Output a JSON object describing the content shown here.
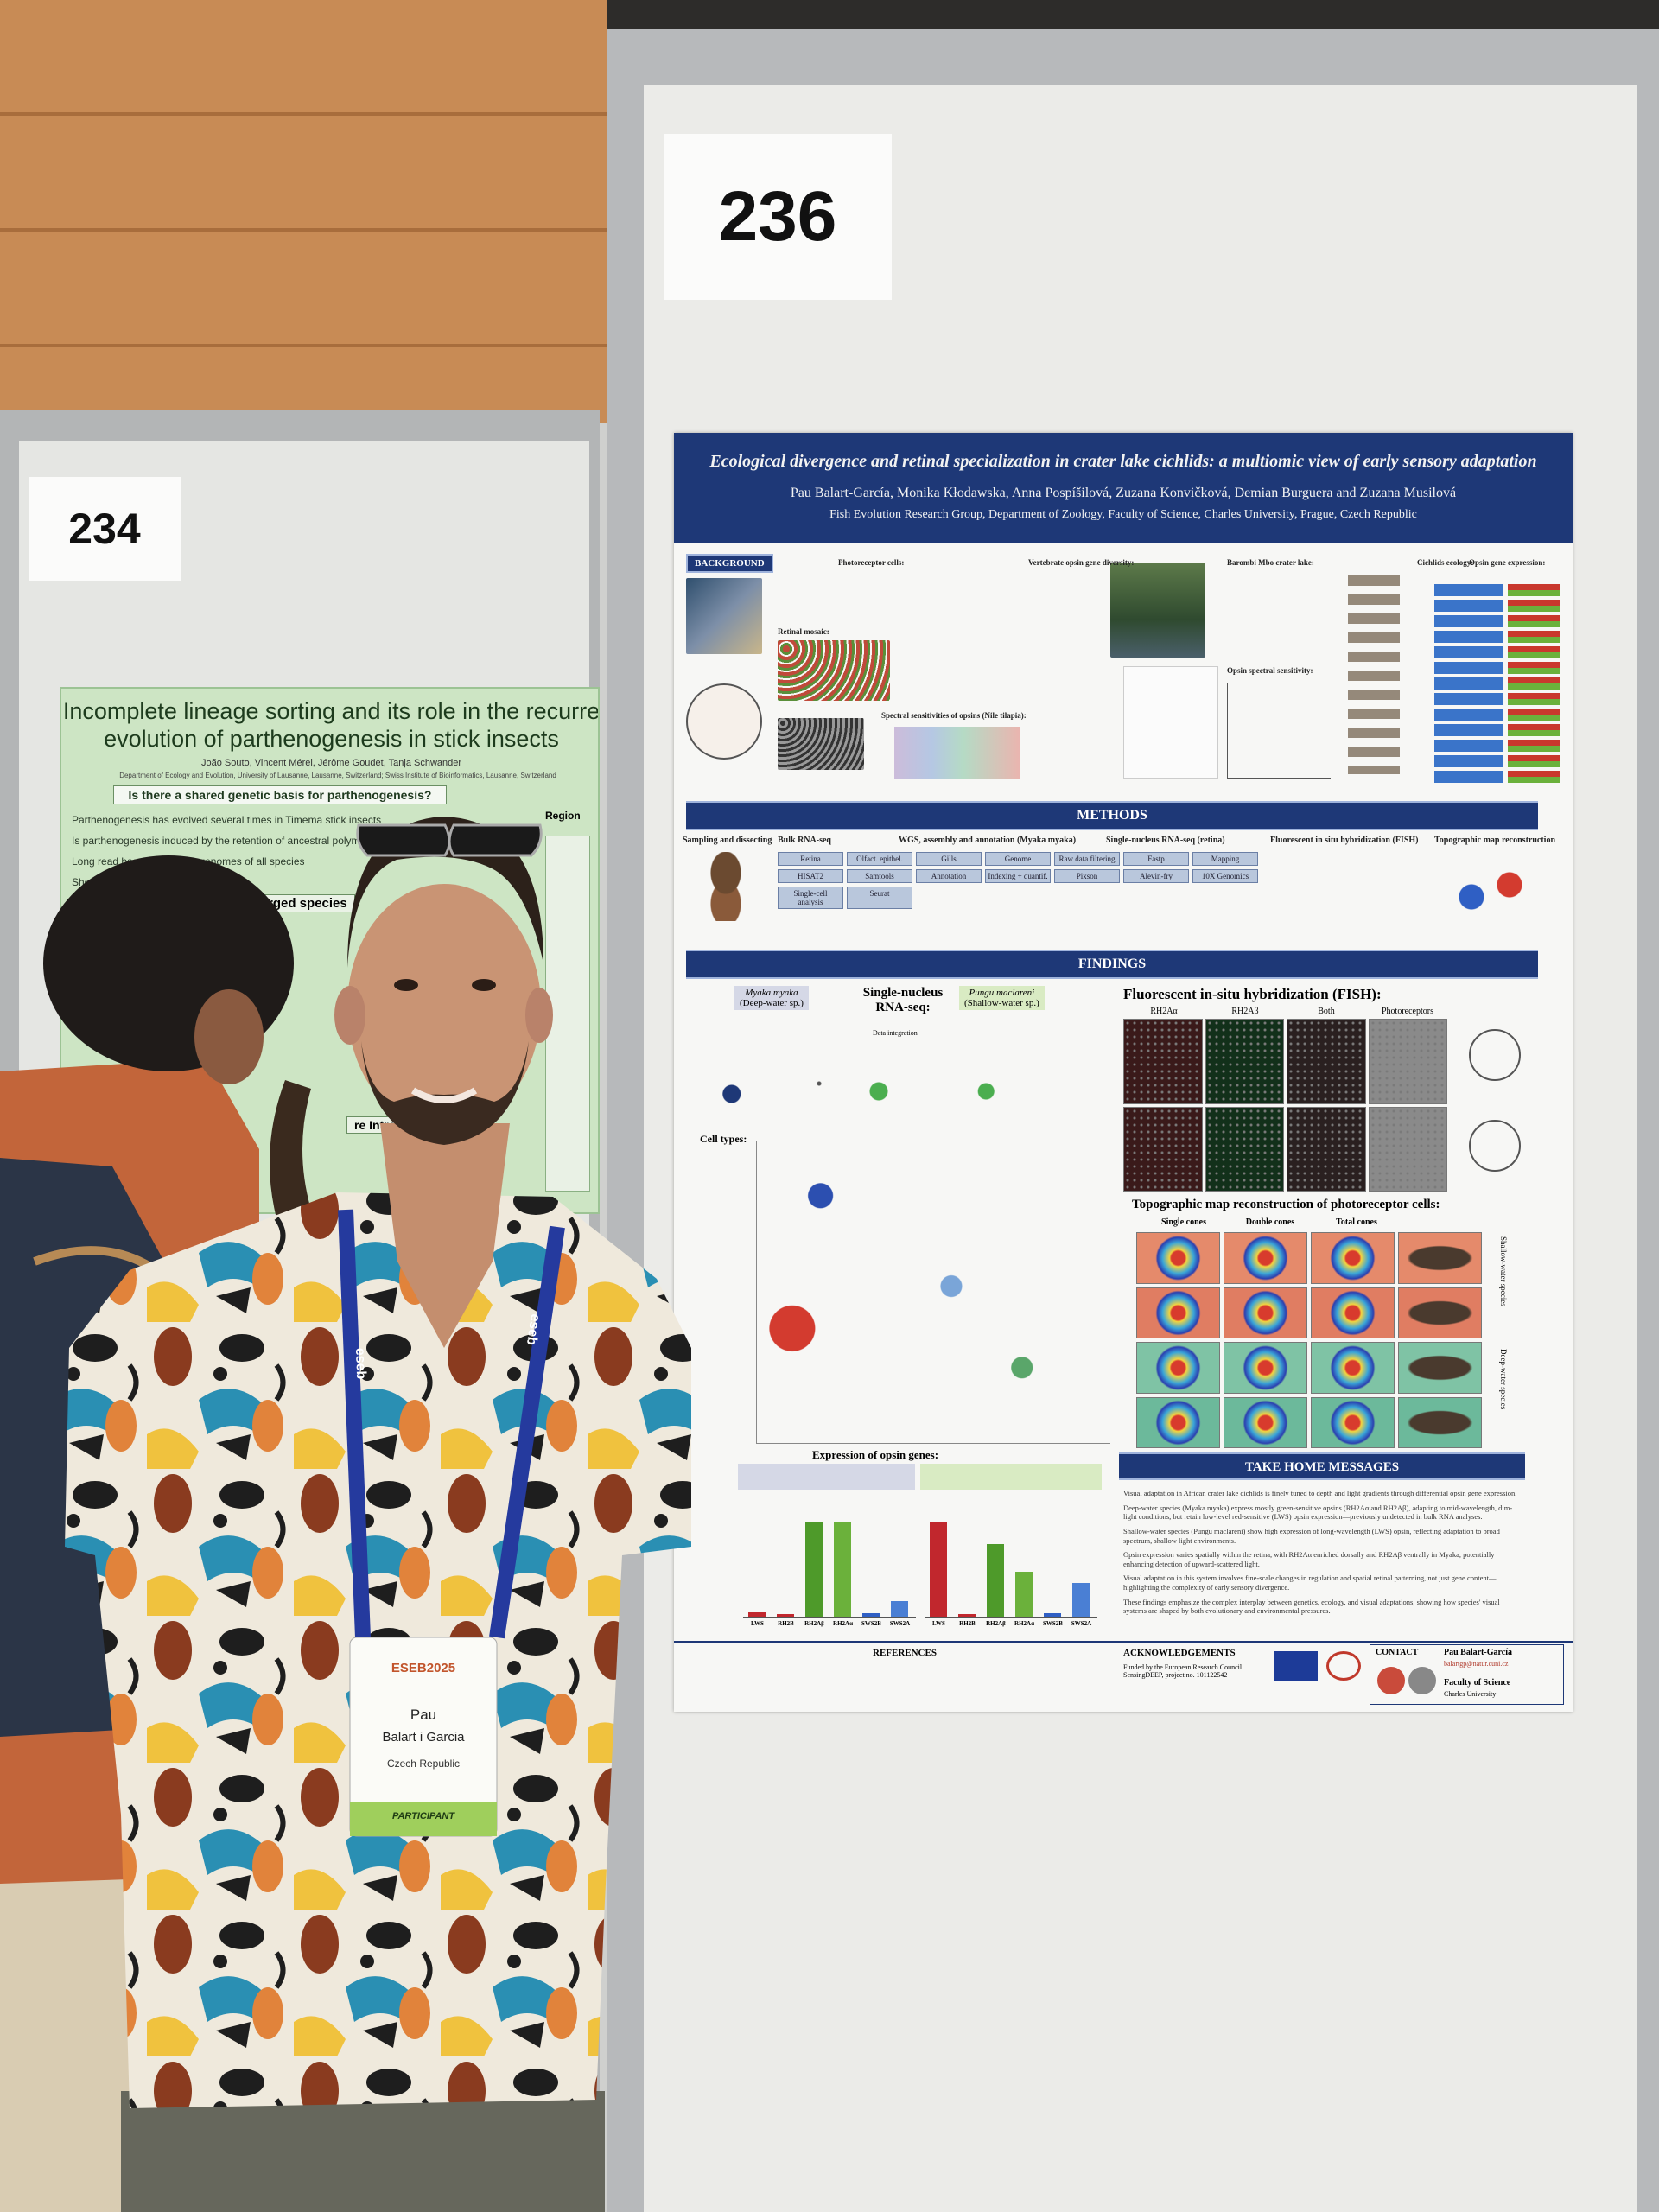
{
  "board_labels": {
    "left": "234",
    "right": "236"
  },
  "left_poster": {
    "title_lines": [
      "Incomplete lineage sorting and its role in the recurre",
      "evolution of parthenogenesis in stick insects"
    ],
    "authors": "João Souto, Vincent Mérel, Jérôme Goudet, Tanja Schwander",
    "affiliations": "Department of Ecology and Evolution, University of Lausanne, Lausanne, Switzerland; Swiss Institute of Bioinformatics, Lausanne, Switzerland",
    "question": "Is there a shared genetic basis for parthenogenesis?",
    "lines": [
      "Parthenogenesis has evolved several times in Timema stick insects",
      "Is parthenogenesis induced by the retention of ancestral polymorp",
      "Long read based reference genomes of all species",
      "Short read"
    ],
    "subheading": "diverged species",
    "side_label": "Region",
    "box_heading": "re Introgression"
  },
  "main_poster": {
    "title": "Ecological divergence and retinal specialization in crater lake cichlids: a multiomic view of early sensory adaptation",
    "authors": "Pau Balart-García, Monika Kłodawska, Anna Pospíšilová, Zuzana Konvičková, Demian Burguera and Zuzana Musilová",
    "affiliation": "Fish Evolution Research Group, Department of Zoology, Faculty of Science, Charles University, Prague, Czech Republic",
    "background": {
      "label": "BACKGROUND",
      "headings": [
        "Photoreceptor cells:",
        "Retinal mosaic:",
        "Spectral sensitivities of opsins (Nile tilapia):",
        "Vertebrate opsin gene diversity:",
        "Barombi Mbo crater lake:",
        "Opsin spectral sensitivity:",
        "Cichlids ecology:",
        "Opsin gene expression:"
      ]
    },
    "methods": {
      "label": "METHODS",
      "headings": [
        "Sampling and dissecting",
        "Bulk RNA-seq",
        "WGS, assembly and annotation (Myaka myaka)",
        "Single-nucleus RNA-seq (retina)",
        "Fluorescent in situ hybridization (FISH)",
        "Topographic map reconstruction"
      ],
      "boxes": [
        "Retina",
        "Olfact. epithel.",
        "Gills",
        "Genome",
        "Raw data filtering",
        "Fastp",
        "Mapping",
        "HISAT2",
        "Samtools",
        "Annotation",
        "Indexing + quantif.",
        "Pixson",
        "Alevin-fry",
        "10X Genomics",
        "Single-cell analysis",
        "Seurat"
      ]
    },
    "findings": {
      "label": "FINDINGS",
      "snrna_heading": "Single-nucleus RNA-seq:",
      "deep_species": "Myaka myaka",
      "deep_note": "(Deep-water sp.)",
      "shallow_species": "Pungu maclareni",
      "shallow_note": "(Shallow-water sp.)",
      "integration": "Data integration",
      "cell_types": "Cell types:",
      "fish_heading": "Fluorescent in-situ hybridization (FISH):",
      "fish_columns": [
        "RH2Aα",
        "RH2Aβ",
        "Both",
        "Photoreceptors"
      ],
      "topo_heading": "Topographic map reconstruction of photoreceptor cells:",
      "topo_columns": [
        "Single cones",
        "Double cones",
        "Total cones"
      ],
      "topo_side": [
        "Shallow-water species",
        "Deep-water species"
      ],
      "opsin_heading": "Expression of opsin genes:",
      "opsin_genes": [
        "LWS",
        "RH2B",
        "RH2Aβ",
        "RH2Aα",
        "SWS2B",
        "SWS2A"
      ]
    },
    "take_home": {
      "label": "TAKE HOME MESSAGES",
      "messages": [
        "Visual adaptation in African crater lake cichlids is finely tuned to depth and light gradients through differential opsin gene expression.",
        "Deep-water species (Myaka myaka) express mostly green-sensitive opsins (RH2Aα and RH2Aβ), adapting to mid-wavelength, dim-light conditions, but retain low-level red-sensitive (LWS) opsin expression—previously undetected in bulk RNA analyses.",
        "Shallow-water species (Pungu maclareni) show high expression of long-wavelength (LWS) opsin, reflecting adaptation to broad spectrum, shallow light environments.",
        "Opsin expression varies spatially within the retina, with RH2Aα enriched dorsally and RH2Aβ ventrally in Myaka, potentially enhancing detection of upward-scattered light.",
        "Visual adaptation in this system involves fine-scale changes in regulation and spatial retinal patterning, not just gene content—highlighting the complexity of early sensory divergence.",
        "These findings emphasize the complex interplay between genetics, ecology, and visual adaptations, showing how species' visual systems are shaped by both evolutionary and environmental pressures."
      ]
    },
    "footer": {
      "references": "REFERENCES",
      "acknowledgements": "ACKNOWLEDGEMENTS",
      "funding": "Funded by the European Research Council SensingDEEP, project no. 101122542",
      "contact": "CONTACT",
      "contact_name": "Pau Balart-García",
      "contact_email": "balartgp@natur.cuni.cz",
      "faculty": "Faculty of Science",
      "university": "Charles University"
    }
  },
  "badge": {
    "event": "ESEB2025",
    "first_name": "Pau",
    "last_name": "Balart i Garcia",
    "country": "Czech Republic",
    "role": "PARTICIPANT",
    "lanyard": "eseb"
  }
}
